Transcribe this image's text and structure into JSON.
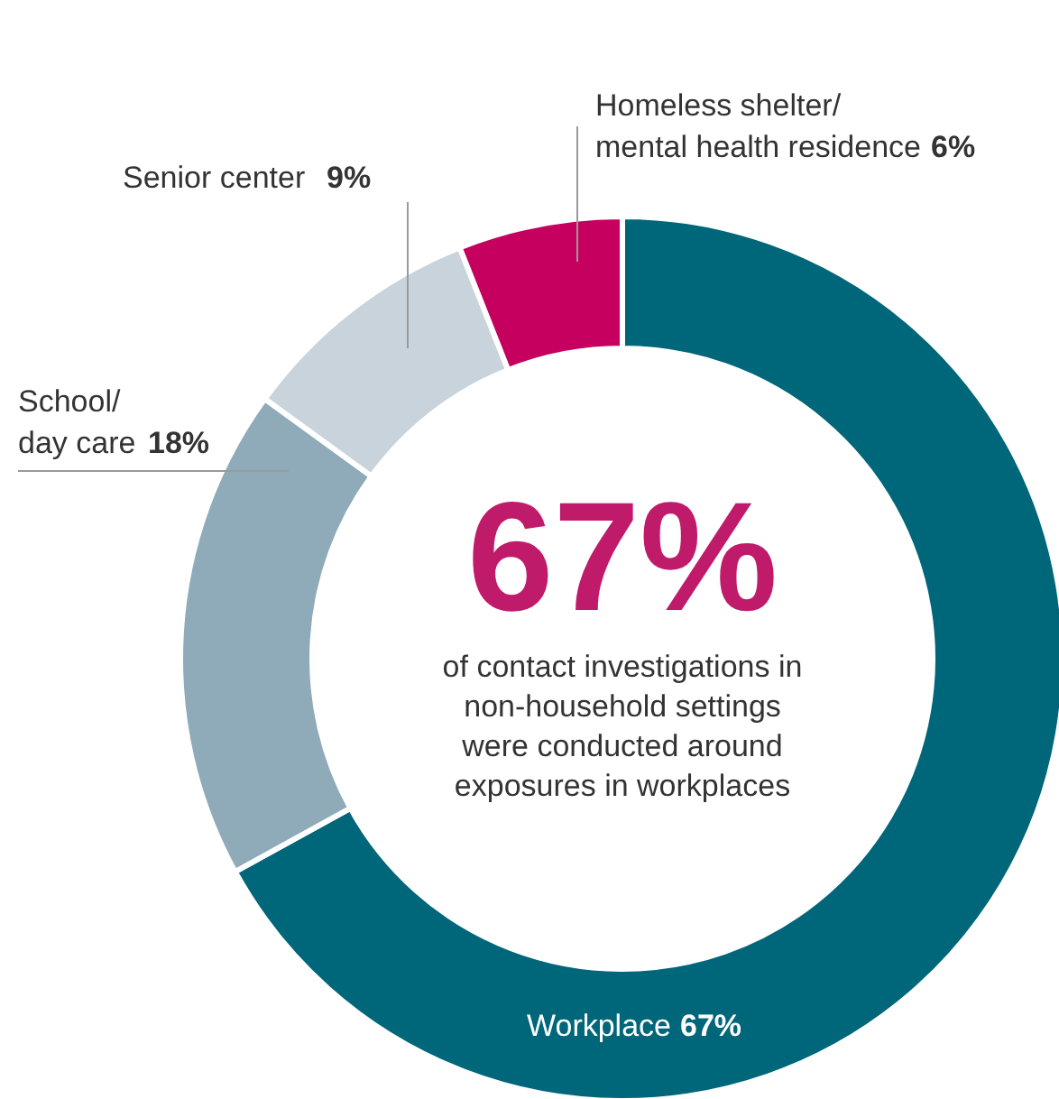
{
  "chart_data": {
    "type": "donut",
    "categories": [
      "Workplace",
      "School/ day care",
      "Senior center",
      "Homeless shelter/ mental health residence"
    ],
    "values": [
      67,
      18,
      9,
      6
    ],
    "colors": [
      "#00667a",
      "#8faab8",
      "#c8d3dc",
      "#c5005f"
    ],
    "value_labels": [
      "67%",
      "18%",
      "9%",
      "6%"
    ],
    "annotations": [
      "67%",
      "of contact investigations in non-household settings were conducted around exposures in workplaces"
    ]
  }
}
